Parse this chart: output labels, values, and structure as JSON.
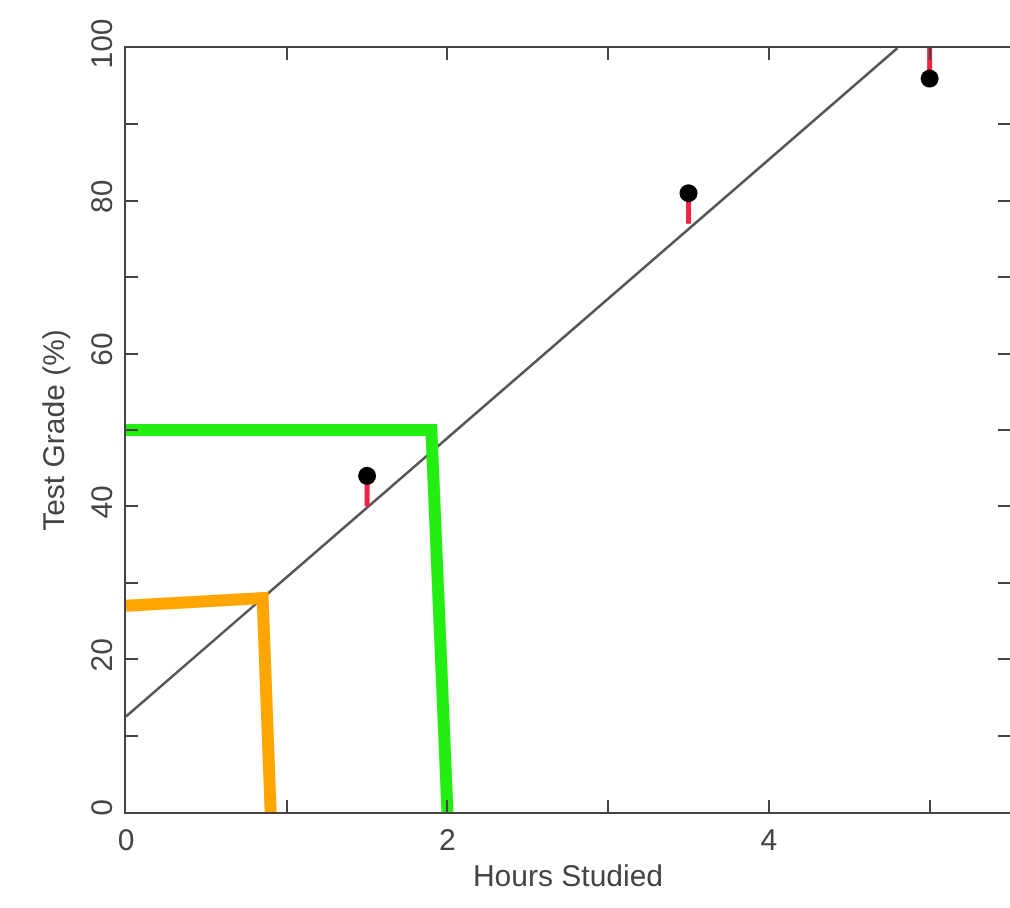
{
  "chart_data": {
    "type": "scatter",
    "xlabel": "Hours Studied",
    "ylabel": "Test Grade (%)",
    "xlim": [
      0,
      5.5
    ],
    "ylim": [
      0,
      100
    ],
    "xticks": [
      0,
      {
        "value": 1,
        "label": null
      },
      2,
      {
        "value": 3,
        "label": null
      },
      4,
      {
        "value": 5,
        "label": null
      }
    ],
    "yticks": [
      0,
      {
        "value": 10,
        "label": null
      },
      20,
      {
        "value": 30,
        "label": null
      },
      40,
      {
        "value": 50,
        "label": null
      },
      60,
      {
        "value": 70,
        "label": null
      },
      80,
      {
        "value": 90,
        "label": null
      },
      100
    ],
    "grid": false,
    "series": [
      {
        "type": "line",
        "color": "#555555",
        "x": [
          0,
          4.8
        ],
        "values": [
          12.5,
          100
        ]
      },
      {
        "type": "line",
        "color": "#22ee11",
        "x": [
          0,
          1.9,
          2
        ],
        "values": [
          50,
          50,
          0
        ]
      },
      {
        "type": "line",
        "color": "#ffa500",
        "x": [
          0,
          0.85,
          0.9
        ],
        "values": [
          27,
          28,
          0
        ]
      },
      {
        "marker": "circle",
        "color": "#000000",
        "x": [
          1.5,
          3.5,
          5
        ],
        "values": [
          44,
          81,
          96
        ],
        "errors": [
          [
            40,
            44
          ],
          [
            77,
            81
          ],
          [
            96,
            100
          ]
        ]
      }
    ]
  }
}
